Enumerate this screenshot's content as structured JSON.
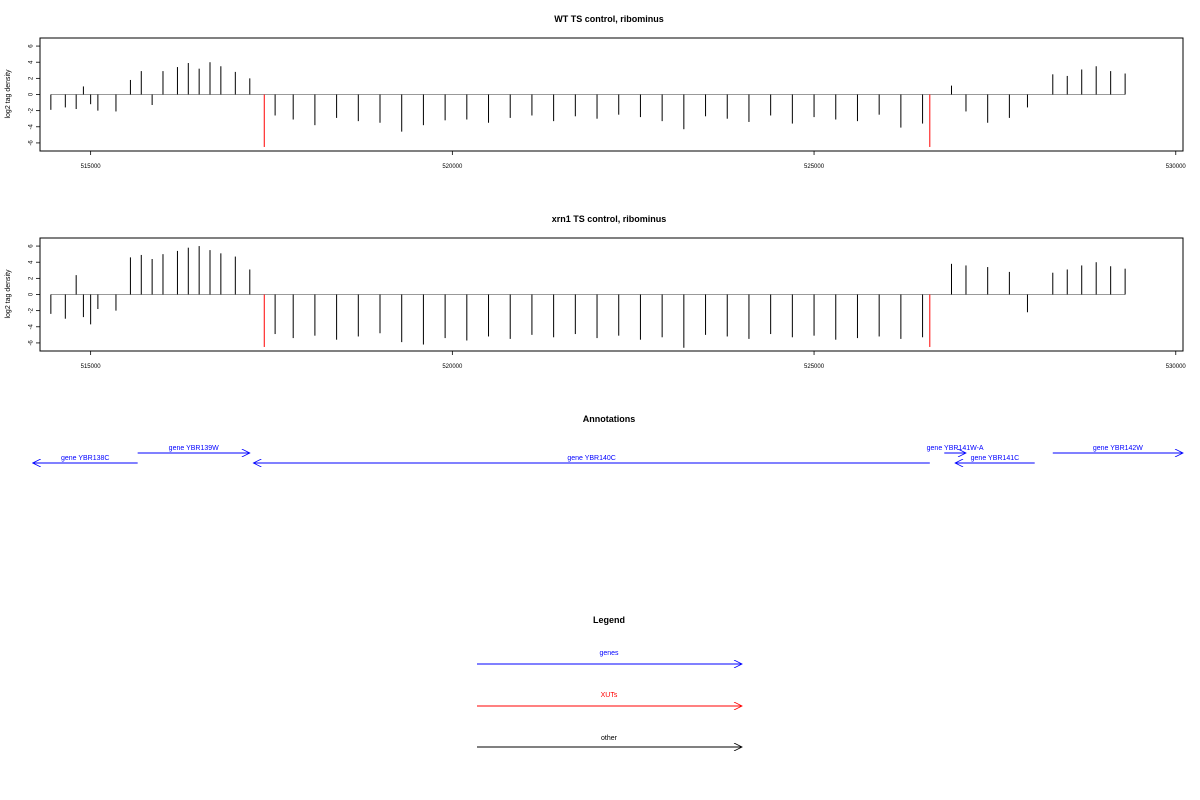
{
  "chart_data": [
    {
      "type": "bar",
      "title": "WT TS control, ribominus",
      "ylabel": "log2 tag density",
      "xlim": [
        514300,
        530100
      ],
      "ylim": [
        -7,
        7
      ],
      "x_ticks": [
        515000,
        520000,
        525000,
        530000
      ],
      "x_tick_labels": [
        "515000",
        "520000",
        "525000",
        "530000"
      ],
      "y_ticks": [
        -6,
        -4,
        -2,
        0,
        2,
        4,
        6
      ],
      "y_tick_labels": [
        "-6",
        "-4",
        "-2",
        "0",
        "2",
        "4",
        "6"
      ],
      "colors": {
        "bars": "#000000",
        "xut_marks": "#ff0000"
      },
      "xut_marks": [
        {
          "x": 517400,
          "y": -6.5
        },
        {
          "x": 526600,
          "y": -6.5
        }
      ],
      "series": [
        {
          "type": "bar",
          "x": [
            514450,
            514650,
            514800,
            514900,
            515000,
            515100,
            515350,
            515550,
            515700,
            515850,
            516000,
            516200,
            516350,
            516500,
            516650,
            516800,
            517000,
            517200,
            517550,
            517800,
            518100,
            518400,
            518700,
            519000,
            519300,
            519600,
            519900,
            520200,
            520500,
            520800,
            521100,
            521400,
            521700,
            522000,
            522300,
            522600,
            522900,
            523200,
            523500,
            523800,
            524100,
            524400,
            524700,
            525000,
            525300,
            525600,
            525900,
            526200,
            526500,
            526900,
            527100,
            527400,
            527700,
            527950,
            528300,
            528500,
            528700,
            528900,
            529100,
            529300
          ],
          "values": [
            -1.9,
            -1.6,
            -1.8,
            1.0,
            -1.2,
            -2.0,
            -2.1,
            1.8,
            2.9,
            -1.3,
            2.9,
            3.4,
            3.9,
            3.2,
            4.0,
            3.5,
            2.8,
            2.0,
            -2.6,
            -3.1,
            -3.8,
            -2.9,
            -3.3,
            -3.5,
            -4.6,
            -3.8,
            -3.2,
            -3.1,
            -3.5,
            -2.9,
            -2.6,
            -3.3,
            -2.7,
            -3.0,
            -2.5,
            -2.8,
            -3.3,
            -4.3,
            -2.7,
            -3.0,
            -3.4,
            -2.6,
            -3.6,
            -2.8,
            -3.1,
            -3.3,
            -2.5,
            -4.1,
            -3.6,
            1.1,
            -2.1,
            -3.5,
            -2.9,
            -1.6,
            2.5,
            2.3,
            3.1,
            3.5,
            2.9,
            2.6
          ]
        }
      ]
    },
    {
      "type": "bar",
      "title": "xrn1 TS control, ribominus",
      "ylabel": "log2 tag density",
      "xlim": [
        514300,
        530100
      ],
      "ylim": [
        -7,
        7
      ],
      "x_ticks": [
        515000,
        520000,
        525000,
        530000
      ],
      "x_tick_labels": [
        "515000",
        "520000",
        "525000",
        "530000"
      ],
      "y_ticks": [
        -6,
        -4,
        -2,
        0,
        2,
        4,
        6
      ],
      "y_tick_labels": [
        "-6",
        "-4",
        "-2",
        "0",
        "2",
        "4",
        "6"
      ],
      "colors": {
        "bars": "#000000",
        "xut_marks": "#ff0000"
      },
      "xut_marks": [
        {
          "x": 517400,
          "y": -6.5
        },
        {
          "x": 526600,
          "y": -6.5
        }
      ],
      "series": [
        {
          "type": "bar",
          "x": [
            514450,
            514650,
            514800,
            514900,
            515000,
            515100,
            515350,
            515550,
            515700,
            515850,
            516000,
            516200,
            516350,
            516500,
            516650,
            516800,
            517000,
            517200,
            517550,
            517800,
            518100,
            518400,
            518700,
            519000,
            519300,
            519600,
            519900,
            520200,
            520500,
            520800,
            521100,
            521400,
            521700,
            522000,
            522300,
            522600,
            522900,
            523200,
            523500,
            523800,
            524100,
            524400,
            524700,
            525000,
            525300,
            525600,
            525900,
            526200,
            526500,
            526900,
            527100,
            527400,
            527700,
            527950,
            528300,
            528500,
            528700,
            528900,
            529100,
            529300
          ],
          "values": [
            -2.4,
            -3.0,
            2.4,
            -2.8,
            -3.7,
            -1.8,
            -2.0,
            4.6,
            4.9,
            4.4,
            5.0,
            5.4,
            5.8,
            6.0,
            5.5,
            5.1,
            4.7,
            3.1,
            -4.9,
            -5.4,
            -5.1,
            -5.6,
            -5.2,
            -4.8,
            -5.9,
            -6.2,
            -5.4,
            -5.7,
            -5.2,
            -5.5,
            -5.0,
            -5.3,
            -4.9,
            -5.4,
            -5.1,
            -5.6,
            -5.3,
            -6.6,
            -5.0,
            -5.2,
            -5.5,
            -4.9,
            -5.3,
            -5.1,
            -5.6,
            -5.4,
            -5.2,
            -5.5,
            -5.3,
            3.8,
            3.6,
            3.4,
            2.8,
            -2.2,
            2.7,
            3.1,
            3.6,
            4.0,
            3.5,
            3.2
          ]
        }
      ]
    }
  ],
  "annotations": {
    "title": "Annotations",
    "genes": [
      {
        "label": "gene YBR138C",
        "start": 514200,
        "end": 515650,
        "direction": "reverse",
        "row": 2,
        "color": "#0000ff"
      },
      {
        "label": "gene YBR139W",
        "start": 515650,
        "end": 517200,
        "direction": "forward",
        "row": 1,
        "color": "#0000ff"
      },
      {
        "label": "gene YBR140C",
        "start": 517250,
        "end": 526600,
        "direction": "reverse",
        "row": 2,
        "color": "#0000ff"
      },
      {
        "label": "gene YBR141W-A",
        "start": 526800,
        "end": 527100,
        "direction": "forward",
        "row": 1,
        "color": "#0000ff"
      },
      {
        "label": "gene YBR141C",
        "start": 526950,
        "end": 528050,
        "direction": "reverse",
        "row": 2,
        "color": "#0000ff"
      },
      {
        "label": "gene YBR142W",
        "start": 528300,
        "end": 530100,
        "direction": "forward",
        "row": 1,
        "color": "#0000ff"
      }
    ]
  },
  "legend": {
    "title": "Legend",
    "items": [
      {
        "label": "genes",
        "color": "#0000ff"
      },
      {
        "label": "XUTs",
        "color": "#ff0000"
      },
      {
        "label": "other",
        "color": "#000000"
      }
    ]
  }
}
